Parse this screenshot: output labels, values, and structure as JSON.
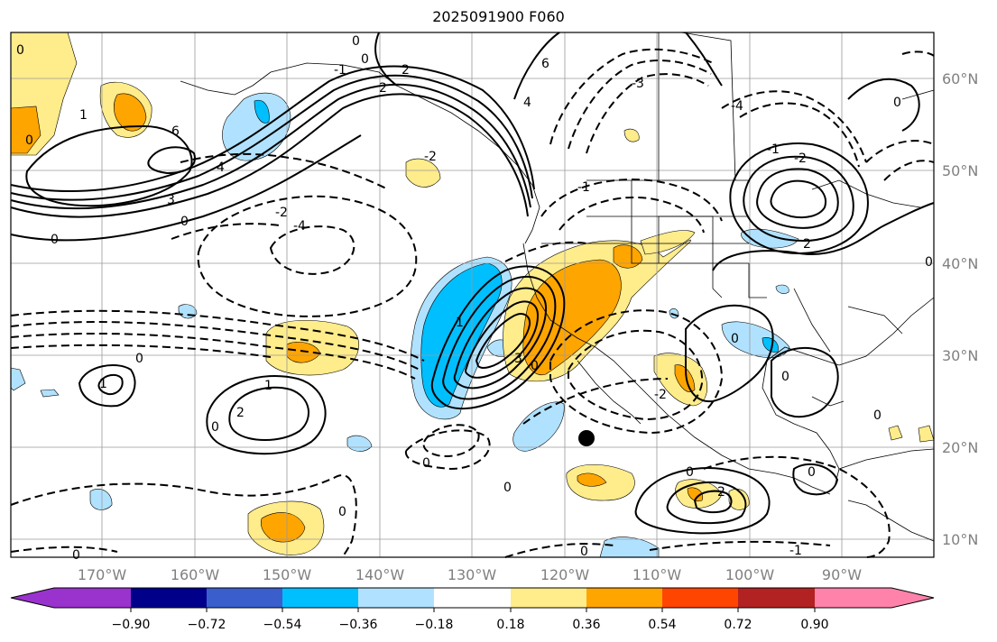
{
  "title": "2025091900 F060",
  "lon_labels": [
    "170°W",
    "160°W",
    "150°W",
    "140°W",
    "130°W",
    "120°W",
    "110°W",
    "100°W",
    "90°W"
  ],
  "lat_labels": [
    "60°N",
    "50°N",
    "40°N",
    "30°N",
    "20°N",
    "10°N"
  ],
  "colorbar": {
    "colors": [
      "#9a32cd",
      "#00008b",
      "#3a5fcd",
      "#00bfff",
      "#b0e2ff",
      "#ffffff",
      "#ffec8b",
      "#ffa500",
      "#ff4500",
      "#b22222",
      "#ff82ab"
    ],
    "tick_labels": [
      "−0.90",
      "−0.72",
      "−0.54",
      "−0.36",
      "−0.18",
      "0.18",
      "0.36",
      "0.54",
      "0.72",
      "0.90"
    ]
  },
  "contour_labels": [
    "0",
    "1",
    "2",
    "3",
    "4",
    "6",
    "-1",
    "-2",
    "-3",
    "-4"
  ],
  "marker": "storm-center-dot"
}
